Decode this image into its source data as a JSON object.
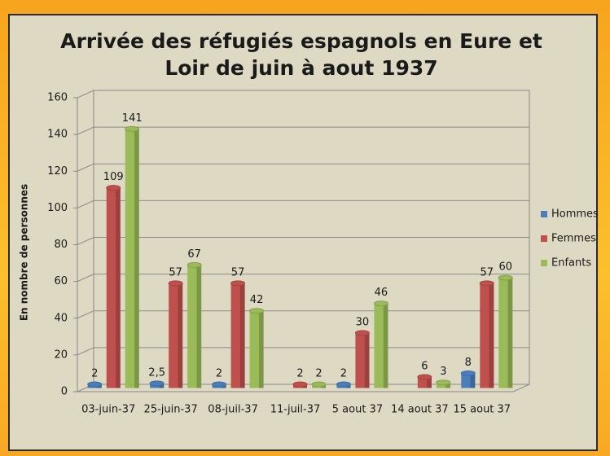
{
  "chart_data": {
    "type": "bar3d",
    "title": "Arrivée des réfugiés espagnols en Eure et Loir de juin à aout 1937",
    "y_label": "En nombre de personnes",
    "categories": [
      "03-juin-37",
      "25-juin-37",
      "08-juil-37",
      "11-juil-37",
      "5 aout 37",
      "14 aout 37",
      "15 aout 37"
    ],
    "series": [
      {
        "name": "Hommes",
        "color": "#4a7ebb",
        "values": [
          2,
          2.5,
          2,
          null,
          2,
          null,
          8
        ],
        "value_labels": [
          "2",
          "2,5",
          "2",
          null,
          "2",
          null,
          "8"
        ]
      },
      {
        "name": "Femmes",
        "color": "#c0504d",
        "values": [
          109,
          57,
          57,
          2,
          30,
          6,
          57
        ]
      },
      {
        "name": "Enfants",
        "color": "#9bbb59",
        "values": [
          141,
          67,
          42,
          2,
          46,
          3,
          60
        ]
      }
    ],
    "ylim": [
      0,
      160
    ],
    "yticks": [
      0,
      20,
      40,
      60,
      80,
      100,
      120,
      140,
      160
    ],
    "grid": true,
    "legend": "right"
  }
}
